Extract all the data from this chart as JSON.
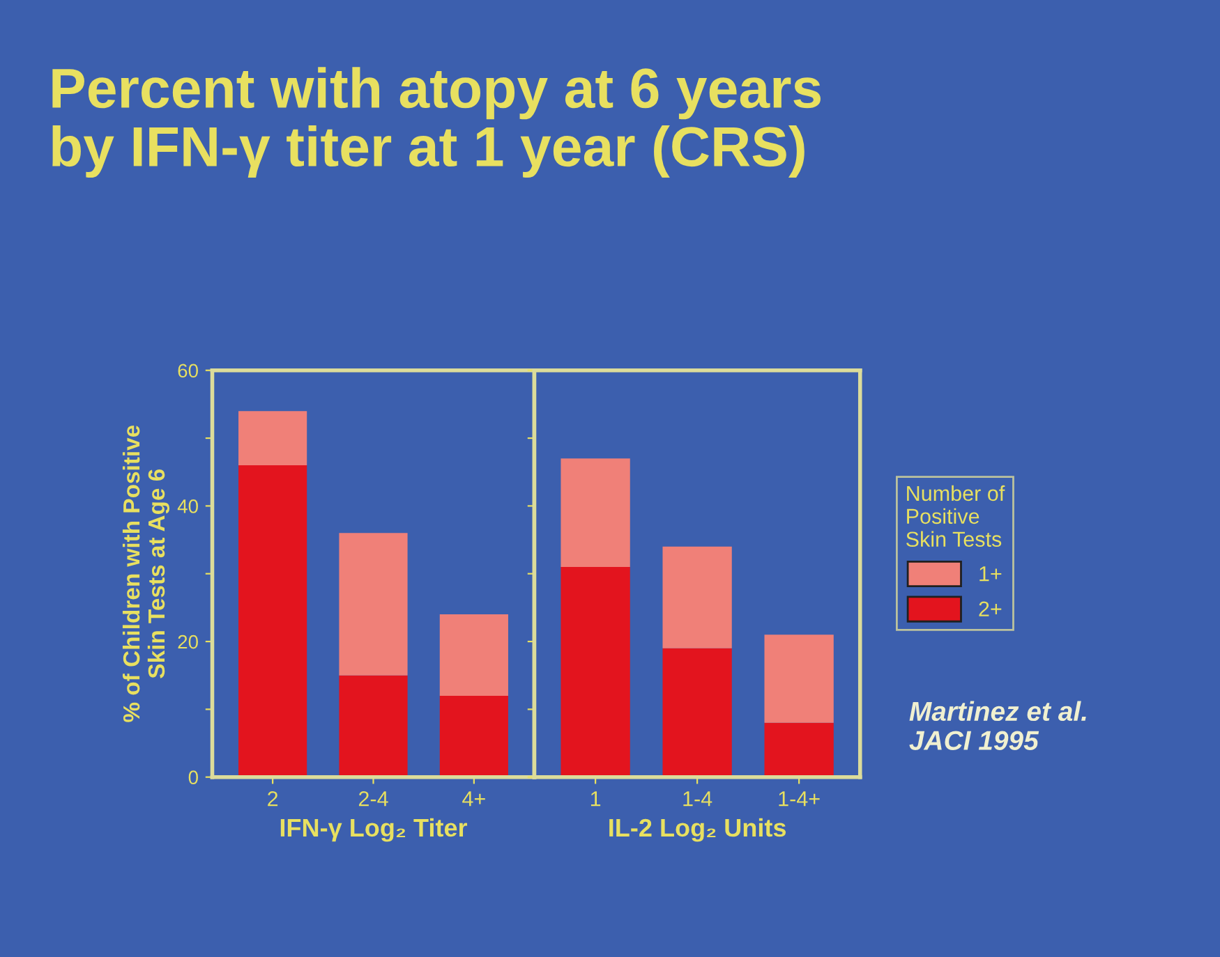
{
  "chart_data": [
    {
      "type": "bar",
      "title": "Percent with atopy at 6 years\nby IFN-γ titer at 1 year (CRS)",
      "ylabel": "% of Children with Positive\nSkin Tests at Age 6",
      "xlabel": "IFN-γ Log₂ Titer",
      "stacked": true,
      "categories": [
        "2",
        "2-4",
        "4+"
      ],
      "series": [
        {
          "color": "#e3141e",
          "values": [
            46,
            15,
            12
          ]
        },
        {
          "color": "#f08078",
          "values": [
            8,
            21,
            12
          ]
        }
      ],
      "ylim": [
        0,
        60
      ],
      "yticks": [
        0,
        {
          "value": 10,
          "label": null
        },
        20,
        {
          "value": 30,
          "label": null
        },
        40,
        {
          "value": 50,
          "label": null
        },
        60
      ]
    },
    {
      "type": "bar",
      "xlabel": "IL-2 Log₂ Units",
      "stacked": true,
      "tick_labels": "x",
      "legend": "right",
      "legend_title": "Number of\nPositive\nSkin Tests",
      "annotations": [
        "Martinez et al.\nJACI 1995"
      ],
      "categories": [
        "1",
        "1-4",
        "1-4+"
      ],
      "series": [
        {
          "name": "2+",
          "color": "#e3141e",
          "values": [
            31,
            19,
            8
          ]
        },
        {
          "name": "1+",
          "color": "#f08078",
          "values": [
            16,
            15,
            13
          ]
        }
      ],
      "ylim": [
        0,
        60
      ],
      "yticks": [
        0,
        {
          "value": 10,
          "label": null
        },
        20,
        {
          "value": 30,
          "label": null
        },
        40,
        {
          "value": 50,
          "label": null
        },
        60
      ]
    }
  ]
}
